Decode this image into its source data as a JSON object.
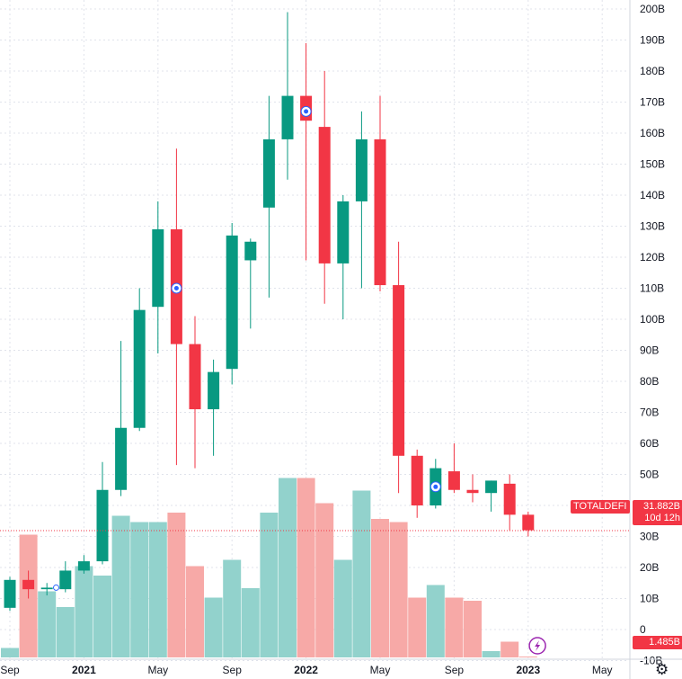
{
  "chart_data": {
    "type": "candlestick",
    "title": "",
    "symbol": "TOTALDEFI",
    "price_label": "31.882B",
    "countdown_label": "10d 12h",
    "volume_label": "1.485B",
    "y_tick_labels": [
      "200B",
      "190B",
      "180B",
      "170B",
      "160B",
      "150B",
      "140B",
      "130B",
      "120B",
      "110B",
      "100B",
      "90B",
      "80B",
      "70B",
      "60B",
      "50B",
      "40B",
      "30B",
      "20B",
      "10B",
      "0",
      "-10B"
    ],
    "y_tick_values": [
      200,
      190,
      180,
      170,
      160,
      150,
      140,
      130,
      120,
      110,
      100,
      90,
      80,
      70,
      60,
      50,
      40,
      30,
      20,
      10,
      0,
      -10
    ],
    "ylim": [
      -15,
      202
    ],
    "x_tick_labels": [
      "Sep",
      "2021",
      "May",
      "Sep",
      "2022",
      "May",
      "Sep",
      "2023",
      "May"
    ],
    "x_tick_bold": [
      false,
      true,
      false,
      false,
      true,
      false,
      false,
      true,
      false
    ],
    "x_tick_month_index": [
      0,
      4,
      8,
      12,
      16,
      20,
      24,
      28,
      32
    ],
    "current_price": 31.882,
    "colors": {
      "up": "#089981",
      "down": "#f23645",
      "up_volume": "#92d2cc",
      "down_volume": "#f7a9a7",
      "grid": "#e0e3eb",
      "price_line": "#f23645",
      "marker": "#9c27b0"
    },
    "candles": [
      {
        "month": "2020-09",
        "open": 7,
        "high": 17,
        "low": 6,
        "close": 16
      },
      {
        "month": "2020-10",
        "open": 16,
        "high": 19,
        "low": 10,
        "close": 13
      },
      {
        "month": "2020-11",
        "open": 13,
        "high": 15,
        "low": 11,
        "close": 13.5
      },
      {
        "month": "2020-12",
        "open": 13,
        "high": 22,
        "low": 12,
        "close": 19
      },
      {
        "month": "2021-01",
        "open": 19,
        "high": 24,
        "low": 18,
        "close": 22
      },
      {
        "month": "2021-02",
        "open": 22,
        "high": 54,
        "low": 21,
        "close": 45
      },
      {
        "month": "2021-03",
        "open": 45,
        "high": 93,
        "low": 43,
        "close": 65
      },
      {
        "month": "2021-04",
        "open": 65,
        "high": 110,
        "low": 64,
        "close": 103
      },
      {
        "month": "2021-05",
        "open": 104,
        "high": 138,
        "low": 89,
        "close": 129
      },
      {
        "month": "2021-06",
        "open": 129,
        "high": 155,
        "low": 53,
        "close": 92
      },
      {
        "month": "2021-07",
        "open": 92,
        "high": 101,
        "low": 52,
        "close": 71
      },
      {
        "month": "2021-08",
        "open": 71,
        "high": 87,
        "low": 56,
        "close": 83
      },
      {
        "month": "2021-09",
        "open": 84,
        "high": 131,
        "low": 79,
        "close": 127
      },
      {
        "month": "2021-10",
        "open": 119,
        "high": 126,
        "low": 97,
        "close": 125
      },
      {
        "month": "2021-11",
        "open": 136,
        "high": 172,
        "low": 107,
        "close": 158
      },
      {
        "month": "2021-12",
        "open": 158,
        "high": 199,
        "low": 145,
        "close": 172
      },
      {
        "month": "2022-01",
        "open": 172,
        "high": 189,
        "low": 119,
        "close": 164
      },
      {
        "month": "2022-02",
        "open": 162,
        "high": 180,
        "low": 105,
        "close": 118
      },
      {
        "month": "2022-03",
        "open": 118,
        "high": 140,
        "low": 100,
        "close": 138
      },
      {
        "month": "2022-04",
        "open": 138,
        "high": 167,
        "low": 110,
        "close": 158
      },
      {
        "month": "2022-05",
        "open": 158,
        "high": 172,
        "low": 109,
        "close": 111
      },
      {
        "month": "2022-06",
        "open": 111,
        "high": 125,
        "low": 44,
        "close": 56
      },
      {
        "month": "2022-07",
        "open": 56,
        "high": 58,
        "low": 36,
        "close": 40
      },
      {
        "month": "2022-08",
        "open": 40,
        "high": 55,
        "low": 39,
        "close": 52
      },
      {
        "month": "2022-09",
        "open": 51,
        "high": 60,
        "low": 44,
        "close": 45
      },
      {
        "month": "2022-10",
        "open": 45,
        "high": 50,
        "low": 41,
        "close": 44
      },
      {
        "month": "2022-11",
        "open": 44,
        "high": 48,
        "low": 38,
        "close": 48
      },
      {
        "month": "2022-12",
        "open": 47,
        "high": 50,
        "low": 32,
        "close": 37
      },
      {
        "month": "2023-01",
        "open": 37,
        "high": 38,
        "low": 30,
        "close": 32
      }
    ],
    "volume": [
      3,
      39,
      21,
      16,
      29,
      26,
      45,
      43,
      43,
      46,
      29,
      19,
      31,
      22,
      46,
      57,
      57,
      49,
      31,
      53,
      44,
      43,
      19,
      23,
      19,
      18,
      2,
      5,
      0
    ]
  }
}
